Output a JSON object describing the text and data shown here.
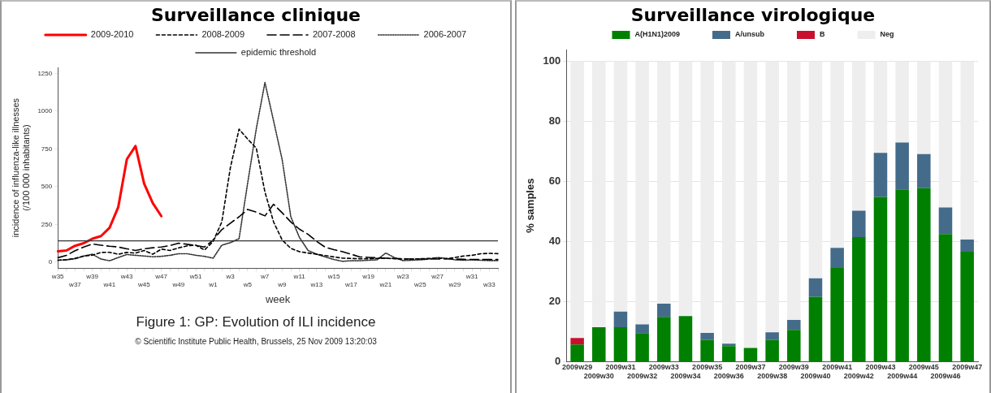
{
  "chart_data": [
    {
      "type": "line",
      "title": "Surveillance clinique",
      "xlabel": "week",
      "ylabel": "incidence of influenza-like illnesses\n(/100 000 inhabitants)",
      "categories": [
        "w35",
        null,
        "w37",
        null,
        "w39",
        null,
        "w41",
        null,
        "w43",
        null,
        "w45",
        null,
        "w47",
        null,
        "w49",
        null,
        "w51",
        null,
        "w1",
        null,
        "w3",
        null,
        "w5",
        null,
        "w7",
        null,
        "w9",
        null,
        "w11",
        null,
        "w13",
        null,
        "w15",
        null,
        "w17",
        null,
        "w19",
        null,
        "w21",
        null,
        "w23",
        null,
        "w25",
        null,
        "w27",
        null,
        "w29",
        null,
        "w31",
        null,
        "w33",
        null
      ],
      "series": [
        {
          "name": "2009-2010",
          "color": "#ff0000",
          "line_style": "solid",
          "values": [
            72,
            77,
            108,
            125,
            155,
            172,
            228,
            364,
            682,
            769,
            520,
            391,
            304,
            null,
            null,
            null,
            null,
            null,
            null,
            null,
            null,
            null,
            null,
            null,
            null,
            null,
            null,
            null,
            null,
            null,
            null,
            null,
            null,
            null,
            null,
            null,
            null,
            null,
            null,
            null,
            null,
            null,
            null,
            null,
            null,
            null,
            null,
            null,
            null,
            null,
            null,
            null
          ]
        },
        {
          "name": "2008-2009",
          "color": "#000000",
          "line_style": "dashed",
          "values": [
            12,
            15,
            25,
            40,
            46,
            64,
            65,
            52,
            64,
            60,
            77,
            52,
            86,
            77,
            94,
            108,
            112,
            80,
            137,
            266,
            627,
            881,
            815,
            755,
            464,
            266,
            146,
            91,
            69,
            60,
            52,
            43,
            34,
            26,
            24,
            22,
            22,
            24,
            26,
            22,
            20,
            20,
            22,
            24,
            26,
            22,
            30,
            40,
            45,
            55,
            58,
            56
          ]
        },
        {
          "name": "2007-2008",
          "color": "#000000",
          "line_style": "dashed",
          "values": [
            29,
            45,
            75,
            100,
            120,
            112,
            105,
            100,
            88,
            77,
            88,
            95,
            100,
            110,
            125,
            118,
            110,
            100,
            146,
            215,
            258,
            300,
            349,
            331,
            306,
            383,
            326,
            266,
            218,
            184,
            137,
            98,
            82,
            69,
            52,
            34,
            31,
            28,
            26,
            24,
            22,
            20,
            20,
            20,
            20,
            22,
            20,
            18,
            17,
            17,
            17,
            17
          ]
        },
        {
          "name": "2006-2007",
          "color": "#333333",
          "line_style": "dotted",
          "values": [
            12,
            15,
            22,
            40,
            52,
            20,
            9,
            30,
            50,
            45,
            40,
            35,
            38,
            45,
            55,
            55,
            45,
            38,
            26,
            112,
            129,
            155,
            524,
            884,
            1190,
            936,
            678,
            300,
            163,
            77,
            52,
            34,
            17,
            5,
            9,
            9,
            12,
            15,
            60,
            30,
            10,
            12,
            15,
            20,
            30,
            25,
            15,
            12,
            15,
            12,
            10,
            10
          ]
        }
      ],
      "ref_lines": [
        {
          "axis": "y",
          "value": 141,
          "label": "epidemic threshold",
          "color": "#333333"
        }
      ],
      "ylim": [
        -40,
        1290
      ],
      "yticks": [
        0,
        250,
        500,
        750,
        1000,
        1250
      ],
      "grid": false,
      "legend": "top",
      "annotations": [
        "Figure 1: GP: Evolution of ILI incidence",
        "© Scientific Institute Public Health, Brussels, 25 Nov 2009 13:20:03"
      ]
    },
    {
      "type": "bar",
      "title": "Surveillance virologique",
      "ylabel": "% samples",
      "stacked": true,
      "categories": [
        "2009w29",
        "2009w30",
        "2009w31",
        "2009w32",
        "2009w33",
        "2009w34",
        "2009w35",
        "2009w36",
        "2009w37",
        "2009w38",
        "2009w39",
        "2009w40",
        "2009w41",
        "2009w42",
        "2009w43",
        "2009w44",
        "2009w45",
        "2009w46",
        "2009w47"
      ],
      "series": [
        {
          "name": "A(H1N1)2009",
          "color": "#008000",
          "values": [
            5.7,
            11.5,
            11.5,
            9.5,
            14.9,
            15.2,
            7.2,
            5.2,
            4.6,
            7.2,
            10.6,
            21.6,
            31.2,
            41.5,
            54.9,
            57.4,
            57.8,
            42.5,
            36.6
          ]
        },
        {
          "name": "A/unsub",
          "color": "#456b8a",
          "values": [
            0,
            0,
            5.2,
            2.9,
            4.4,
            0,
            2.4,
            0.8,
            0,
            2.6,
            3.3,
            6.2,
            6.7,
            8.8,
            14.7,
            15.6,
            11.4,
            8.9,
            4.1
          ]
        },
        {
          "name": "B",
          "color": "#c8102e",
          "values": [
            2.2,
            0,
            0,
            0,
            0,
            0,
            0,
            0,
            0,
            0,
            0,
            0,
            0,
            0,
            0,
            0,
            0,
            0,
            0
          ]
        },
        {
          "name": "Neg",
          "color": "#eeeeee",
          "values": [
            92.1,
            88.5,
            83.3,
            87.6,
            80.7,
            84.8,
            90.4,
            94.0,
            95.4,
            90.2,
            86.1,
            72.2,
            62.1,
            49.7,
            30.4,
            27.0,
            30.8,
            48.6,
            59.3
          ]
        }
      ],
      "ylim": [
        0,
        104
      ],
      "yticks": [
        0,
        20,
        40,
        60,
        80,
        100
      ],
      "grid": "y",
      "legend": "top"
    }
  ]
}
